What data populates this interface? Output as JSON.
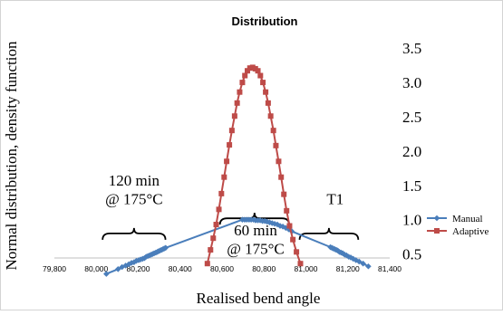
{
  "chart_data": {
    "type": "line",
    "title": "Distribution",
    "xlabel": "Realised bend angle",
    "ylabel": "Normal distribution, density function",
    "xlim": [
      79800,
      81400
    ],
    "ylim": [
      0,
      3.5
    ],
    "x_ticks": [
      79800,
      80000,
      80200,
      80400,
      80600,
      80800,
      81000,
      81200,
      81400
    ],
    "x_tick_labels": [
      "79,800",
      "80,000",
      "80,200",
      "80,400",
      "80,600",
      "80,800",
      "81,000",
      "81,200",
      "81,400"
    ],
    "y_ticks": [
      0.5,
      1.0,
      1.5,
      2.0,
      2.5,
      3.0,
      3.5
    ],
    "y_tick_labels": [
      "0.5",
      "1.0",
      "1.5",
      "2.0",
      "2.5",
      "3.0",
      "3.5"
    ],
    "legend_position": "right",
    "annotations": [
      {
        "text": "120 min",
        "x": 80180,
        "y": 1.5
      },
      {
        "text": "@ 175°C",
        "x": 80180,
        "y": 1.23
      },
      {
        "text": "60 min",
        "x": 80760,
        "y": 0.77
      },
      {
        "text": "@ 175°C",
        "x": 80760,
        "y": 0.5
      },
      {
        "text": "T1",
        "x": 81140,
        "y": 1.23
      }
    ],
    "braces": [
      {
        "x_from": 80030,
        "x_to": 80330,
        "y": 0.8
      },
      {
        "x_from": 80590,
        "x_to": 80920,
        "y": 1.02
      },
      {
        "x_from": 80970,
        "x_to": 81250,
        "y": 0.8
      }
    ],
    "series": [
      {
        "name": "Manual",
        "color": "#4A7EBB",
        "marker": "diamond",
        "x": [
          80048,
          80104,
          80123,
          80140,
          80155,
          80168,
          80180,
          80191,
          80202,
          80211,
          80221,
          80230,
          80238,
          80246,
          80254,
          80262,
          80269,
          80276,
          80284,
          80291,
          80297,
          80304,
          80311,
          80318,
          80324,
          80331,
          80697,
          80708,
          80718,
          80729,
          80739,
          80750,
          80760,
          80771,
          80782,
          80793,
          80804,
          80815,
          80827,
          80839,
          80851,
          80864,
          80877,
          80890,
          80904,
          80918,
          80933,
          81117,
          81124,
          81131,
          81138,
          81145,
          81152,
          81160,
          81168,
          81176,
          81185,
          81194,
          81204,
          81214,
          81226,
          81239,
          81254,
          81273,
          81298
        ],
        "y": [
          0.21,
          0.28,
          0.31,
          0.33,
          0.35,
          0.37,
          0.38,
          0.4,
          0.41,
          0.42,
          0.43,
          0.44,
          0.46,
          0.47,
          0.48,
          0.49,
          0.5,
          0.51,
          0.52,
          0.53,
          0.54,
          0.55,
          0.56,
          0.57,
          0.58,
          0.59,
          1.0,
          1.0,
          1.0,
          1.0,
          1.0,
          1.0,
          0.99,
          0.99,
          0.99,
          0.98,
          0.98,
          0.97,
          0.96,
          0.95,
          0.94,
          0.93,
          0.91,
          0.9,
          0.88,
          0.86,
          0.83,
          0.6,
          0.59,
          0.58,
          0.57,
          0.56,
          0.55,
          0.53,
          0.52,
          0.51,
          0.49,
          0.48,
          0.46,
          0.45,
          0.43,
          0.41,
          0.39,
          0.36,
          0.32
        ]
      },
      {
        "name": "Adaptive",
        "color": "#BE4B48",
        "marker": "square",
        "x": [
          80530,
          80545,
          80558,
          80572,
          80585,
          80597,
          80610,
          80622,
          80635,
          80647,
          80660,
          80672,
          80684,
          80697,
          80709,
          80721,
          80733,
          80746,
          80759,
          80771,
          80783,
          80795,
          80808,
          80820,
          80832,
          80845,
          80857,
          80870,
          80882,
          80895,
          80908,
          80922,
          80938,
          80955,
          80974
        ],
        "y": [
          0.36,
          0.56,
          0.73,
          0.93,
          1.15,
          1.38,
          1.62,
          1.85,
          2.09,
          2.3,
          2.51,
          2.7,
          2.86,
          3.0,
          3.1,
          3.17,
          3.21,
          3.22,
          3.2,
          3.17,
          3.1,
          3.0,
          2.86,
          2.7,
          2.51,
          2.3,
          2.08,
          1.85,
          1.62,
          1.37,
          1.13,
          0.91,
          0.71,
          0.53,
          0.36
        ]
      }
    ]
  }
}
